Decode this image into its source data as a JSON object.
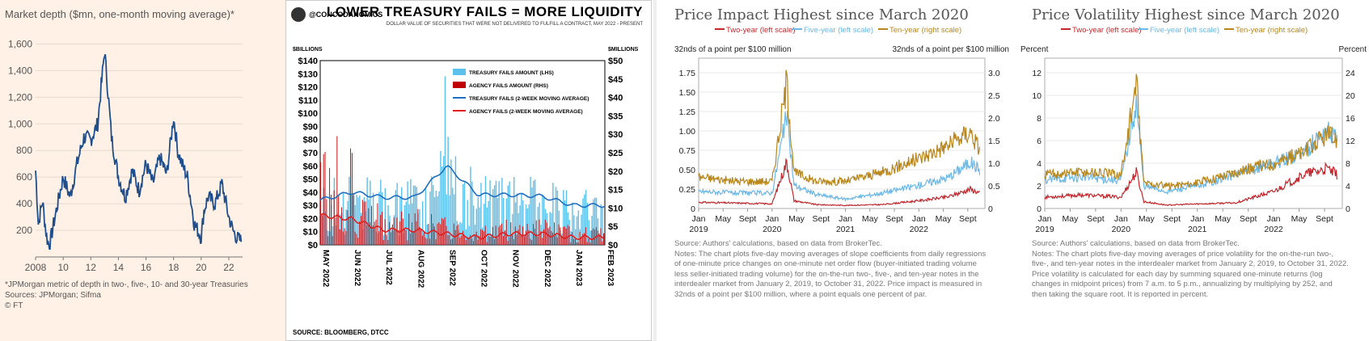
{
  "p1": {
    "title": "Market depth ($mn, one-month moving average)*",
    "yticks": [
      "200",
      "400",
      "600",
      "800",
      "1,000",
      "1,200",
      "1,400",
      "1,600"
    ],
    "xticks": [
      "2008",
      "10",
      "12",
      "14",
      "16",
      "18",
      "20",
      "22"
    ],
    "footnote": "*JPMorgan metric of depth in two-, five-, 10- and 30-year Treasuries",
    "sources": "Sources: JPMorgan; Sifma",
    "copyright": "© FT",
    "line_color": "#1f4e8c"
  },
  "p2": {
    "handle": "@CONCODANOMICS",
    "title": "LOWER TREASURY FAILS = MORE LIQUIDITY",
    "subtitle": "DOLLAR VALUE OF SECURITIES THAT WERE NOT DELIVERED TO FULFILL A CONTRACT, MAY 2022 - PRESENT",
    "left_unit": "$BILLIONS",
    "right_unit": "$MILLIONS",
    "left_ticks": [
      "$0",
      "$10",
      "$20",
      "$30",
      "$40",
      "$50",
      "$60",
      "$70",
      "$80",
      "$90",
      "$100",
      "$110",
      "$120",
      "$130",
      "$140"
    ],
    "right_ticks": [
      "$0",
      "$5",
      "$10",
      "$15",
      "$20",
      "$25",
      "$30",
      "$35",
      "$40",
      "$45",
      "$50"
    ],
    "x_ticks": [
      "MAY 2022",
      "JUN 2022",
      "JUL 2022",
      "AUG 2022",
      "SEP 2022",
      "OCT 2022",
      "NOV 2022",
      "DEC 2022",
      "JAN 2023",
      "FEB 2023"
    ],
    "legend": [
      "TREASURY FAILS AMOUNT (LHS)",
      "AGENCY FAILS AMOUNT (RHS)",
      "TREASURY FAILS (2-WEEK MOVING AVERAGE)",
      "AGENCY FAILS (2-WEEK MOVING AVERAGE)"
    ],
    "source": "SOURCE: BLOOMBERG, DTCC",
    "colors": {
      "treasury_bar": "#5bc0eb",
      "agency_bar": "#c00000",
      "treasury_ma": "#1f6fc0",
      "agency_ma": "#e02020"
    }
  },
  "p3": {
    "title": "Price Impact Highest since March 2020",
    "legend": [
      "Two-year (left scale)",
      "Five-year (left scale)",
      "Ten-year (right scale)"
    ],
    "left_unit": "32nds of a point per $100 million",
    "right_unit": "32nds of a point per $100 million",
    "left_ticks": [
      "0",
      "0.25",
      "0.50",
      "0.75",
      "1.00",
      "1.25",
      "1.50",
      "1.75"
    ],
    "right_ticks": [
      "0",
      "0.5",
      "1.0",
      "1.5",
      "2.0",
      "2.5",
      "3.0"
    ],
    "x_ticks": [
      "Jan",
      "May",
      "Sept",
      "Jan",
      "May",
      "Sept",
      "Jan",
      "May",
      "Sept",
      "Jan",
      "May",
      "Sept"
    ],
    "x_years": [
      "2019",
      "2020",
      "2021",
      "2022"
    ],
    "notes": [
      "Source: Authors' calculations, based on data from BrokerTec.",
      "Notes: The chart plots five-day moving averages of slope coefficients from daily regressions",
      "of one-minute price changes on one-minute net order flow (buyer-initiated trading volume",
      "less seller-initiated trading volume) for the on-the-run two-, five-, and ten-year notes in the",
      "interdealer market from January 2, 2019, to October 31, 2022. Price impact is measured in",
      "32nds of a point per $100 million, where a point equals one percent of par."
    ]
  },
  "p4": {
    "title": "Price Volatility Highest since March 2020",
    "legend": [
      "Two-year (left scale)",
      "Five-year (left scale)",
      "Ten-year (right scale)"
    ],
    "left_unit": "Percent",
    "right_unit": "Percent",
    "left_ticks": [
      "0",
      "2",
      "4",
      "6",
      "8",
      "10",
      "12"
    ],
    "right_ticks": [
      "0",
      "4",
      "8",
      "12",
      "16",
      "20",
      "24"
    ],
    "x_ticks": [
      "Jan",
      "May",
      "Sept",
      "Jan",
      "May",
      "Sept",
      "Jan",
      "May",
      "Sept",
      "Jan",
      "May",
      "Sept"
    ],
    "x_years": [
      "2019",
      "2020",
      "2021",
      "2022"
    ],
    "notes": [
      "Source: Authors' calculations, based on data from BrokerTec.",
      "Notes: The chart plots five-day moving averages of price volatility for the on-the-run two-,",
      "five-, and ten-year notes in the interdealer market from January 2, 2019, to October 31, 2022.",
      "Price volatility is calculated for each day by summing squared one-minute returns (log",
      "changes in midpoint prices) from 7 a.m. to 5 p.m., annualizing by multiplying by 252, and",
      "then taking the square root. It is reported in percent."
    ]
  },
  "series_colors": {
    "two_year": "#c0282d",
    "five_year": "#6cb8e6",
    "ten_year": "#b8861b"
  },
  "chart_data": [
    {
      "type": "line",
      "title": "Market depth ($mn, one-month moving average)*",
      "x": [
        2008,
        2008.2,
        2008.5,
        2008.8,
        2009,
        2009.5,
        2010,
        2010.5,
        2011,
        2011.5,
        2012,
        2012.5,
        2013,
        2013.2,
        2013.5,
        2014,
        2014.5,
        2015,
        2015.5,
        2016,
        2016.5,
        2017,
        2017.5,
        2018,
        2018.3,
        2018.6,
        2019,
        2019.5,
        2020,
        2020.2,
        2020.5,
        2021,
        2021.5,
        2022,
        2022.3,
        2022.6,
        2022.9
      ],
      "values": [
        650,
        250,
        420,
        150,
        80,
        350,
        600,
        450,
        700,
        900,
        880,
        1000,
        1550,
        1300,
        900,
        600,
        450,
        650,
        500,
        700,
        550,
        750,
        620,
        1050,
        800,
        700,
        600,
        250,
        150,
        350,
        450,
        400,
        550,
        300,
        200,
        140,
        120
      ],
      "xlim": [
        2008,
        2023
      ],
      "ylim": [
        0,
        1700
      ]
    },
    {
      "type": "bar",
      "title": "LOWER TREASURY FAILS = MORE LIQUIDITY",
      "x": [
        "MAY 2022",
        "JUN 2022",
        "JUL 2022",
        "AUG 2022",
        "SEP 2022",
        "OCT 2022",
        "NOV 2022",
        "DEC 2022",
        "JAN 2023",
        "FEB 2023"
      ],
      "series": [
        {
          "name": "TREASURY FAILS (2-WEEK MOVING AVERAGE)",
          "values": [
            34,
            40,
            36,
            36,
            60,
            38,
            38,
            37,
            30,
            30
          ]
        },
        {
          "name": "AGENCY FAILS (2-WEEK MOVING AVERAGE)",
          "values": [
            8,
            7,
            4,
            4,
            3,
            2,
            3,
            3,
            2,
            2
          ]
        }
      ],
      "ylim": [
        0,
        140
      ],
      "y2lim": [
        0,
        50
      ]
    },
    {
      "type": "line",
      "title": "Price Impact Highest since March 2020",
      "x": [
        2019.0,
        2019.5,
        2020.0,
        2020.2,
        2020.3,
        2020.6,
        2021.0,
        2021.5,
        2022.0,
        2022.4,
        2022.7,
        2022.83
      ],
      "series": [
        {
          "name": "Two-year (left scale)",
          "values": [
            0.08,
            0.07,
            0.06,
            0.6,
            0.1,
            0.05,
            0.04,
            0.05,
            0.1,
            0.15,
            0.25,
            0.2
          ]
        },
        {
          "name": "Five-year (left scale)",
          "values": [
            0.22,
            0.2,
            0.2,
            1.2,
            0.3,
            0.18,
            0.12,
            0.2,
            0.3,
            0.4,
            0.6,
            0.5
          ]
        },
        {
          "name": "Ten-year (right scale)",
          "values": [
            0.7,
            0.6,
            0.6,
            2.8,
            0.8,
            0.6,
            0.6,
            0.8,
            1.1,
            1.4,
            1.7,
            1.3
          ]
        }
      ],
      "ylim": [
        0,
        1.75
      ],
      "y2lim": [
        0,
        3.0
      ]
    },
    {
      "type": "line",
      "title": "Price Volatility Highest since March 2020",
      "x": [
        2019.0,
        2019.5,
        2020.0,
        2020.2,
        2020.3,
        2020.6,
        2021.0,
        2021.5,
        2022.0,
        2022.4,
        2022.7,
        2022.83
      ],
      "series": [
        {
          "name": "Two-year (left scale)",
          "values": [
            1,
            1.2,
            1,
            3.2,
            0.6,
            0.3,
            0.4,
            0.5,
            1.5,
            3,
            3.5,
            3
          ]
        },
        {
          "name": "Five-year (left scale)",
          "values": [
            2.5,
            2.8,
            2.5,
            9.5,
            2,
            1.5,
            2,
            3,
            4,
            5,
            7,
            6
          ]
        },
        {
          "name": "Ten-year (right scale)",
          "values": [
            6,
            6.5,
            6,
            22,
            4.5,
            4,
            4.5,
            6.5,
            8,
            10,
            13,
            12
          ]
        }
      ],
      "ylim": [
        0,
        12
      ],
      "y2lim": [
        0,
        24
      ]
    }
  ]
}
